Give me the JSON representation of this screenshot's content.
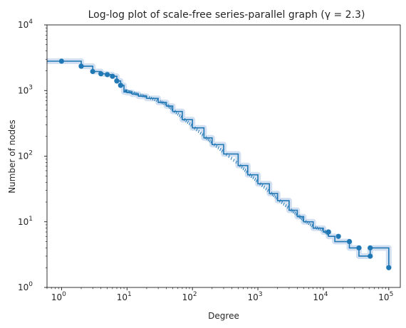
{
  "chart_data": {
    "type": "line",
    "title": "Log-log plot of scale-free series-parallel graph (γ = 2.3)",
    "xlabel": "Degree",
    "ylabel": "Number of nodes",
    "xscale": "log",
    "yscale": "log",
    "xlim": [
      0.6,
      150000
    ],
    "ylim": [
      1,
      10000
    ],
    "grid": false,
    "legend": "none",
    "line_style": "steps-post",
    "color": "#1f77b4",
    "band_color": "#aec7e8",
    "xticks": [
      {
        "value": 1,
        "base": "10",
        "exp": "0"
      },
      {
        "value": 10,
        "base": "10",
        "exp": "1"
      },
      {
        "value": 100,
        "base": "10",
        "exp": "2"
      },
      {
        "value": 1000,
        "base": "10",
        "exp": "3"
      },
      {
        "value": 10000,
        "base": "10",
        "exp": "4"
      },
      {
        "value": 100000,
        "base": "10",
        "exp": "5"
      }
    ],
    "yticks": [
      {
        "value": 1,
        "base": "10",
        "exp": "0"
      },
      {
        "value": 10,
        "base": "10",
        "exp": "1"
      },
      {
        "value": 100,
        "base": "10",
        "exp": "2"
      },
      {
        "value": 1000,
        "base": "10",
        "exp": "3"
      },
      {
        "value": 10000,
        "base": "10",
        "exp": "4"
      }
    ],
    "x": [
      0.6,
      1,
      2,
      3,
      4,
      5,
      6,
      7,
      8,
      9,
      10,
      12,
      15,
      20,
      30,
      40,
      50,
      70,
      100,
      150,
      200,
      300,
      500,
      700,
      1000,
      1500,
      2000,
      3000,
      4000,
      5000,
      7000,
      10000,
      12000,
      15000,
      18000,
      25000,
      35000,
      52000,
      52000,
      100000
    ],
    "y": [
      2800,
      2800,
      2350,
      1950,
      1800,
      1750,
      1650,
      1400,
      1200,
      950,
      930,
      880,
      820,
      760,
      660,
      580,
      480,
      360,
      270,
      190,
      150,
      108,
      72,
      52,
      38,
      27,
      21,
      15,
      12,
      10,
      8,
      7,
      6,
      5,
      5,
      4,
      3,
      3,
      4,
      2
    ],
    "markers": [
      {
        "x": 1,
        "y": 2800
      },
      {
        "x": 2,
        "y": 2350
      },
      {
        "x": 3,
        "y": 1950
      },
      {
        "x": 4,
        "y": 1800
      },
      {
        "x": 5,
        "y": 1750
      },
      {
        "x": 6,
        "y": 1650
      },
      {
        "x": 7,
        "y": 1400
      },
      {
        "x": 8,
        "y": 1200
      },
      {
        "x": 12000,
        "y": 7
      },
      {
        "x": 17000,
        "y": 6
      },
      {
        "x": 25000,
        "y": 5
      },
      {
        "x": 35000,
        "y": 4
      },
      {
        "x": 52000,
        "y": 4
      },
      {
        "x": 52000,
        "y": 3
      },
      {
        "x": 100000,
        "y": 2
      }
    ]
  }
}
